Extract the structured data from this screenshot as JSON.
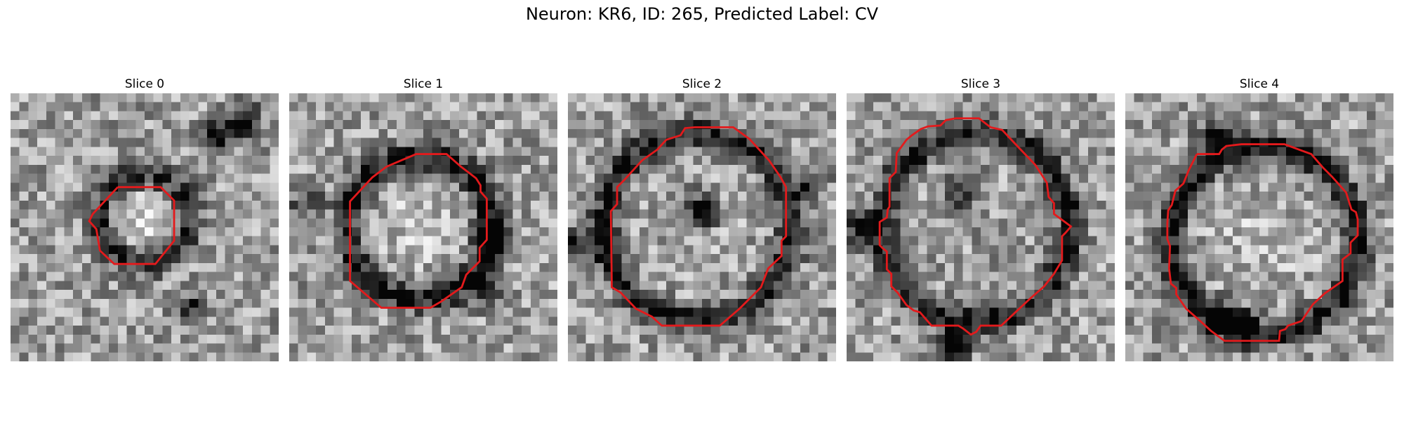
{
  "figure": {
    "title": "Neuron: KR6, ID: 265, Predicted Label: CV"
  },
  "panels": [
    {
      "title": "Slice 0",
      "contour_color": "#e31a1c"
    },
    {
      "title": "Slice 1",
      "contour_color": "#e31a1c"
    },
    {
      "title": "Slice 2",
      "contour_color": "#e31a1c"
    },
    {
      "title": "Slice 3",
      "contour_color": "#e31a1c"
    },
    {
      "title": "Slice 4",
      "contour_color": "#e31a1c"
    }
  ]
}
